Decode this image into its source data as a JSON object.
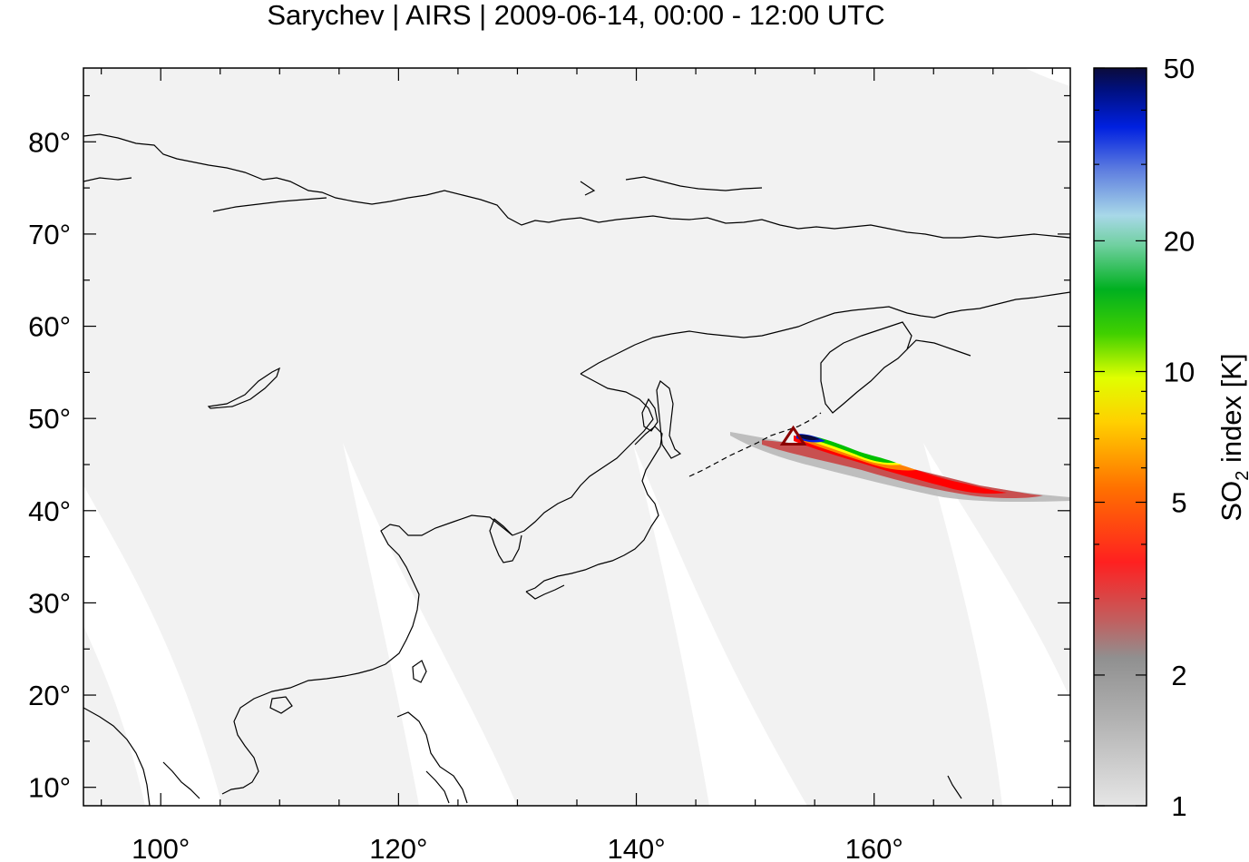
{
  "title": "Sarychev | AIRS | 2009-06-14, 00:00 - 12:00 UTC",
  "map": {
    "lon_range": [
      93.5,
      176.5
    ],
    "lat_range": [
      8,
      88
    ],
    "lon_ticks": [
      100,
      120,
      140,
      160
    ],
    "lat_ticks": [
      10,
      20,
      30,
      40,
      50,
      60,
      70,
      80
    ],
    "lon_tick_labels": [
      "100°",
      "120°",
      "140°",
      "160°"
    ],
    "lat_tick_labels": [
      "10°",
      "20°",
      "30°",
      "40°",
      "50°",
      "60°",
      "70°",
      "80°"
    ],
    "background_color": "#f2f2f2",
    "coastline_color": "#000000",
    "volcano": {
      "lon": 153.2,
      "lat": 48.1,
      "marker": "triangle-icon",
      "color": "#8b0000"
    }
  },
  "colorbar": {
    "label_main": "SO",
    "label_sub": "2",
    "label_rest": " index [K]",
    "scale": "log",
    "range": [
      1,
      50
    ],
    "ticks": [
      1,
      2,
      5,
      10,
      20,
      50
    ],
    "tick_labels": [
      "1",
      "2",
      "5",
      "10",
      "20",
      "50"
    ],
    "colors": [
      "#e0e0e0",
      "#a0a0a0",
      "#c85050",
      "#ff0000",
      "#ff7a00",
      "#ffff00",
      "#00c000",
      "#a8d8e8",
      "#4a60d0",
      "#0010a0",
      "#0b0b3b"
    ]
  }
}
